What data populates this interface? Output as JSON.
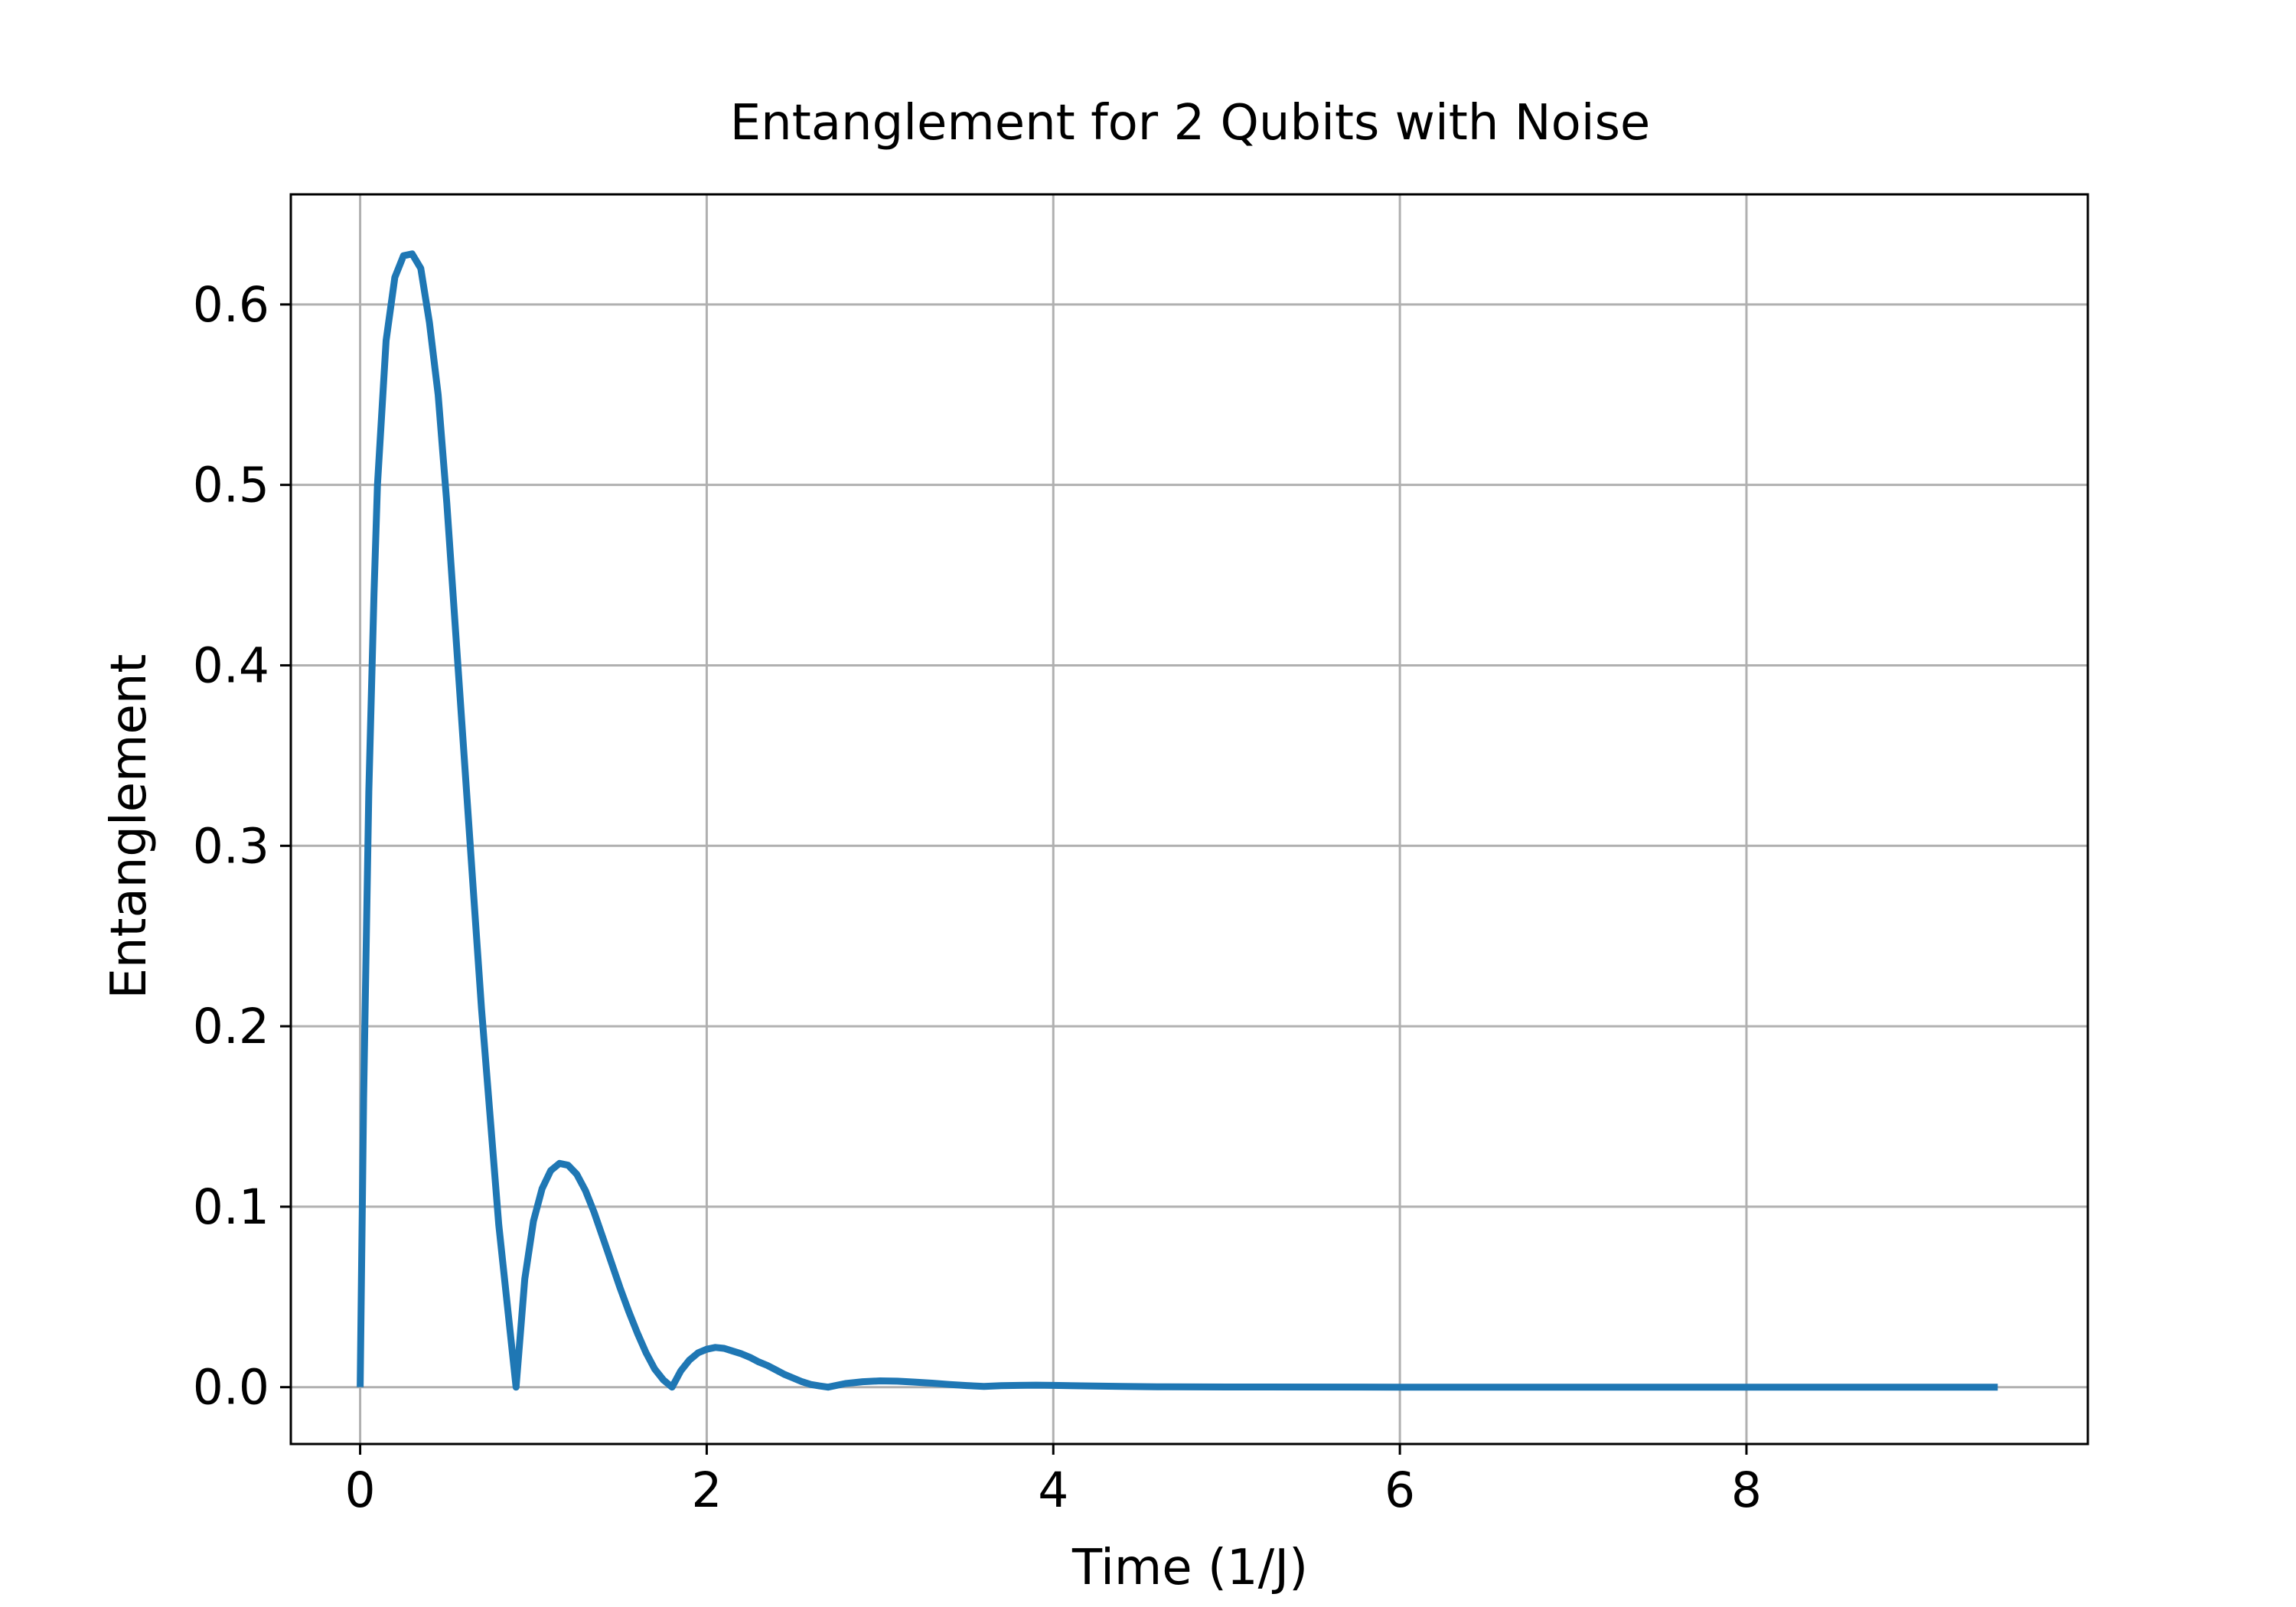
{
  "chart_data": {
    "type": "line",
    "title": "Entanglement for 2 Qubits with Noise",
    "xlabel": "Time (1/J)",
    "ylabel": "Entanglement",
    "xlim": [
      -0.4,
      9.97
    ],
    "ylim": [
      -0.0315,
      0.661
    ],
    "xticks": [
      0,
      2,
      4,
      6,
      8
    ],
    "xtick_labels": [
      "0",
      "2",
      "4",
      "6",
      "8"
    ],
    "yticks": [
      0.0,
      0.1,
      0.2,
      0.3,
      0.4,
      0.5,
      0.6
    ],
    "ytick_labels": [
      "0.0",
      "0.1",
      "0.2",
      "0.3",
      "0.4",
      "0.5",
      "0.6"
    ],
    "grid": true,
    "legend": "none",
    "series": [
      {
        "color": "#1f77b4",
        "x": [
          0,
          0.02,
          0.05,
          0.08,
          0.1,
          0.15,
          0.2,
          0.25,
          0.3,
          0.35,
          0.4,
          0.45,
          0.5,
          0.55,
          0.6,
          0.65,
          0.7,
          0.75,
          0.8,
          0.85,
          0.9,
          0.95,
          1.0,
          1.05,
          1.1,
          1.15,
          1.2,
          1.25,
          1.3,
          1.35,
          1.4,
          1.45,
          1.5,
          1.55,
          1.6,
          1.65,
          1.7,
          1.75,
          1.8,
          1.85,
          1.9,
          1.95,
          2.0,
          2.05,
          2.1,
          2.15,
          2.2,
          2.25,
          2.3,
          2.35,
          2.4,
          2.45,
          2.5,
          2.55,
          2.6,
          2.65,
          2.7,
          2.8,
          2.9,
          3.0,
          3.1,
          3.2,
          3.3,
          3.4,
          3.5,
          3.6,
          3.7,
          3.8,
          3.9,
          4.0,
          4.2,
          4.4,
          4.6,
          5.0,
          6.0,
          7.0,
          8.0,
          9.0,
          9.45
        ],
        "y": [
          0.0,
          0.16,
          0.33,
          0.44,
          0.5,
          0.58,
          0.615,
          0.627,
          0.628,
          0.62,
          0.59,
          0.55,
          0.49,
          0.42,
          0.35,
          0.28,
          0.21,
          0.15,
          0.09,
          0.045,
          0.0,
          0.06,
          0.092,
          0.11,
          0.12,
          0.124,
          0.123,
          0.118,
          0.109,
          0.097,
          0.083,
          0.069,
          0.055,
          0.042,
          0.03,
          0.019,
          0.01,
          0.004,
          0.0,
          0.009,
          0.015,
          0.019,
          0.021,
          0.022,
          0.0215,
          0.02,
          0.0185,
          0.0165,
          0.014,
          0.012,
          0.0095,
          0.007,
          0.005,
          0.003,
          0.0015,
          0.0007,
          0.0,
          0.002,
          0.003,
          0.0035,
          0.0033,
          0.0028,
          0.0022,
          0.0015,
          0.0009,
          0.0004,
          0.0008,
          0.001,
          0.0011,
          0.001,
          0.0007,
          0.0004,
          0.0002,
          0.0001,
          0.0,
          0.0,
          0.0,
          0.0,
          0.0
        ]
      }
    ]
  }
}
